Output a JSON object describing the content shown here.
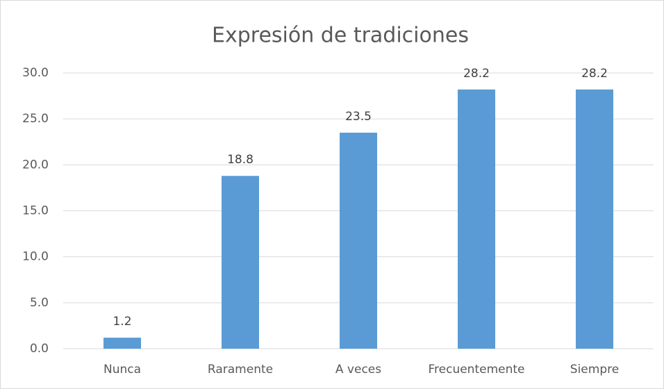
{
  "chart_data": {
    "type": "bar",
    "title": "Expresión de tradiciones",
    "categories": [
      "Nunca",
      "Raramente",
      "A veces",
      "Frecuentemente",
      "Siempre"
    ],
    "values": [
      1.2,
      18.8,
      23.5,
      28.2,
      28.2
    ],
    "color": "#5b9bd5",
    "ylim": [
      0,
      30
    ],
    "yticks": [
      {
        "value": 0,
        "label": "0.0"
      },
      {
        "value": 5,
        "label": "5.0"
      },
      {
        "value": 10,
        "label": "10.0"
      },
      {
        "value": 15,
        "label": "15.0"
      },
      {
        "value": 20,
        "label": "20.0"
      },
      {
        "value": 25,
        "label": "25.0"
      },
      {
        "value": 30,
        "label": "30.0"
      }
    ],
    "grid": true
  }
}
